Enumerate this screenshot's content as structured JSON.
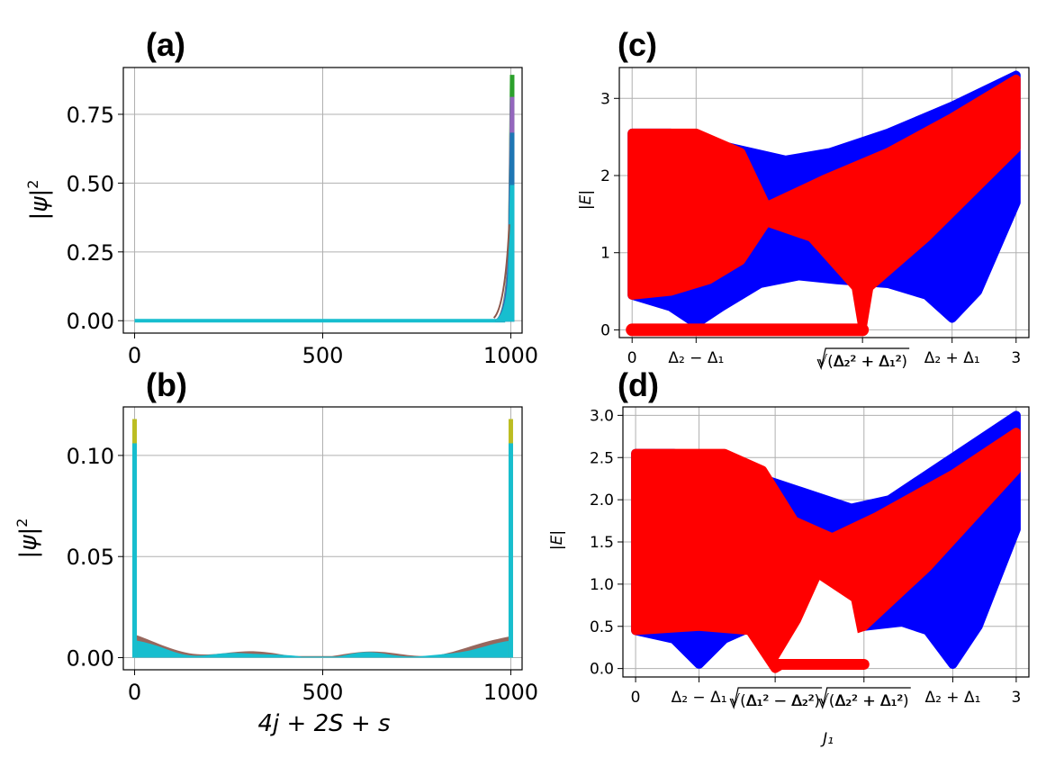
{
  "panel_labels": [
    "(a)",
    "(b)",
    "(c)",
    "(d)"
  ],
  "colors": {
    "blue": "#0000ff",
    "red": "#ff0000",
    "tab_cyan": "#17becf",
    "tab_blue": "#1f77b4",
    "tab_green": "#2ca02c",
    "tab_purple": "#9467bd",
    "tab_olive": "#bcbd22",
    "tab_brown": "#8c564b",
    "grid": "#b0b0b0"
  },
  "chart_data": [
    {
      "id": "a",
      "type": "line",
      "title": "(a)",
      "xlabel": "",
      "ylabel": "|ψ|²",
      "xlim": [
        -30,
        1030
      ],
      "ylim": [
        -0.045,
        0.92
      ],
      "xticks": [
        0,
        500,
        1000
      ],
      "xtick_labels": [
        "0",
        "500",
        "1000"
      ],
      "yticks": [
        0.0,
        0.25,
        0.5,
        0.75
      ],
      "ytick_labels": [
        "0.00",
        "0.25",
        "0.50",
        "0.75"
      ],
      "grid": true,
      "description_series": [
        {
          "name": "edge-peak-green",
          "color": "#2ca02c",
          "peak_x": 1000,
          "peak_y": 0.89
        },
        {
          "name": "edge-peak-purple",
          "color": "#9467bd",
          "peak_x": 1000,
          "peak_y": 0.81
        },
        {
          "name": "edge-peak-blue",
          "color": "#1f77b4",
          "peak_x": 1000,
          "peak_y": 0.68
        },
        {
          "name": "edge-peak-cyan",
          "color": "#17becf",
          "peak_x": 1000,
          "peak_y": 0.49
        }
      ]
    },
    {
      "id": "b",
      "type": "line",
      "title": "(b)",
      "xlabel": "4j + 2S + s",
      "ylabel": "|ψ|²",
      "xlim": [
        -30,
        1030
      ],
      "ylim": [
        -0.006,
        0.124
      ],
      "xticks": [
        0,
        500,
        1000
      ],
      "xtick_labels": [
        "0",
        "500",
        "1000"
      ],
      "yticks": [
        0.0,
        0.05,
        0.1
      ],
      "ytick_labels": [
        "0.00",
        "0.05",
        "0.10"
      ],
      "grid": true,
      "description_series": [
        {
          "name": "edge-peak-olive",
          "color": "#bcbd22",
          "peak_left": 0.118,
          "peak_right": 0.118
        },
        {
          "name": "edge-peak-cyan",
          "color": "#17becf",
          "peak_left": 0.106,
          "peak_right": 0.106
        },
        {
          "name": "bulk-band",
          "color": "#17becf",
          "bulk_level": 0.004
        }
      ]
    },
    {
      "id": "c",
      "type": "scatter",
      "title": "(c)",
      "xlabel": "",
      "ylabel": "|E|",
      "xlim": [
        -0.1,
        3.1
      ],
      "ylim": [
        -0.1,
        3.4
      ],
      "yticks": [
        0,
        1,
        2,
        3
      ],
      "ytick_labels": [
        "0",
        "1",
        "2",
        "3"
      ],
      "xtick_positions": [
        0,
        0.5,
        1.8,
        2.5,
        3.0
      ],
      "xtick_labels": [
        "0",
        "Δ₂ − Δ₁",
        "√(Δ₂² + Δ₁²)",
        "Δ₂ + Δ₁",
        "3"
      ],
      "grid": true,
      "series": [
        {
          "name": "blue-band",
          "color": "#0000ff",
          "upper": [
            [
              0,
              2.55
            ],
            [
              0.3,
              2.55
            ],
            [
              0.8,
              2.35
            ],
            [
              1.2,
              2.2
            ],
            [
              1.55,
              2.3
            ],
            [
              2.0,
              2.55
            ],
            [
              2.5,
              2.9
            ],
            [
              3.0,
              3.3
            ]
          ],
          "lower": [
            [
              0,
              0.45
            ],
            [
              0.3,
              0.3
            ],
            [
              0.5,
              0.08
            ],
            [
              0.7,
              0.3
            ],
            [
              1.0,
              0.6
            ],
            [
              1.3,
              0.7
            ],
            [
              1.6,
              0.65
            ],
            [
              2.0,
              0.6
            ],
            [
              2.3,
              0.45
            ],
            [
              2.5,
              0.15
            ],
            [
              2.7,
              0.5
            ],
            [
              3.0,
              1.65
            ]
          ]
        },
        {
          "name": "red-band",
          "color": "#ff0000",
          "upper": [
            [
              0,
              2.55
            ],
            [
              0.5,
              2.55
            ],
            [
              0.85,
              2.3
            ],
            [
              1.05,
              1.6
            ],
            [
              1.5,
              1.95
            ],
            [
              2.0,
              2.3
            ],
            [
              2.5,
              2.75
            ],
            [
              3.0,
              3.25
            ]
          ],
          "lower": [
            [
              0,
              0.45
            ],
            [
              0.3,
              0.5
            ],
            [
              0.6,
              0.65
            ],
            [
              0.85,
              0.9
            ],
            [
              1.05,
              1.4
            ],
            [
              1.4,
              1.2
            ],
            [
              1.75,
              0.55
            ],
            [
              1.8,
              0.05
            ],
            [
              1.85,
              0.55
            ],
            [
              2.3,
              1.2
            ],
            [
              3.0,
              2.35
            ]
          ],
          "zero_mode": [
            [
              0,
              0
            ],
            [
              1.8,
              0
            ]
          ]
        }
      ]
    },
    {
      "id": "d",
      "type": "scatter",
      "title": "(d)",
      "xlabel": "J₁",
      "ylabel": "|E|",
      "xlim": [
        -0.1,
        3.1
      ],
      "ylim": [
        -0.1,
        3.1
      ],
      "yticks": [
        0.0,
        0.5,
        1.0,
        1.5,
        2.0,
        2.5,
        3.0
      ],
      "ytick_labels": [
        "0.0",
        "0.5",
        "1.0",
        "1.5",
        "2.0",
        "2.5",
        "3.0"
      ],
      "xtick_positions": [
        0,
        0.5,
        1.1,
        1.8,
        2.5,
        3.0
      ],
      "xtick_labels": [
        "0",
        "Δ₂ − Δ₁",
        "√(Δ₁² − Δ₂²)",
        "√(Δ₂² + Δ₁²)",
        "Δ₂ + Δ₁",
        "3"
      ],
      "grid": true,
      "series": [
        {
          "name": "blue-band",
          "color": "#0000ff",
          "upper": [
            [
              0,
              2.55
            ],
            [
              0.3,
              2.55
            ],
            [
              0.8,
              2.35
            ],
            [
              1.3,
              2.1
            ],
            [
              1.7,
              1.9
            ],
            [
              2.0,
              2.0
            ],
            [
              2.5,
              2.5
            ],
            [
              3.0,
              3.0
            ]
          ],
          "lower": [
            [
              0,
              0.45
            ],
            [
              0.3,
              0.35
            ],
            [
              0.5,
              0.05
            ],
            [
              0.7,
              0.35
            ],
            [
              1.0,
              0.55
            ],
            [
              1.4,
              0.55
            ],
            [
              1.8,
              0.5
            ],
            [
              2.1,
              0.55
            ],
            [
              2.3,
              0.45
            ],
            [
              2.5,
              0.05
            ],
            [
              2.7,
              0.5
            ],
            [
              3.0,
              1.65
            ]
          ]
        },
        {
          "name": "red-band",
          "color": "#ff0000",
          "upper": [
            [
              0,
              2.55
            ],
            [
              0.7,
              2.55
            ],
            [
              1.0,
              2.35
            ],
            [
              1.25,
              1.75
            ],
            [
              1.55,
              1.55
            ],
            [
              1.9,
              1.8
            ],
            [
              2.5,
              2.3
            ],
            [
              3.0,
              2.8
            ]
          ],
          "lower": [
            [
              0,
              0.45
            ],
            [
              0.5,
              0.5
            ],
            [
              0.9,
              0.45
            ],
            [
              1.1,
              0.0
            ],
            [
              1.5,
              0.35
            ],
            [
              1.8,
              0.5
            ],
            [
              2.3,
              1.2
            ],
            [
              3.0,
              2.35
            ]
          ],
          "hole": [
            [
              1.1,
              0.05
            ],
            [
              1.3,
              0.55
            ],
            [
              1.45,
              1.05
            ],
            [
              1.7,
              0.8
            ],
            [
              1.8,
              0.05
            ]
          ],
          "zero_mode": [
            [
              1.1,
              0.05
            ],
            [
              1.8,
              0.05
            ]
          ]
        }
      ]
    }
  ]
}
